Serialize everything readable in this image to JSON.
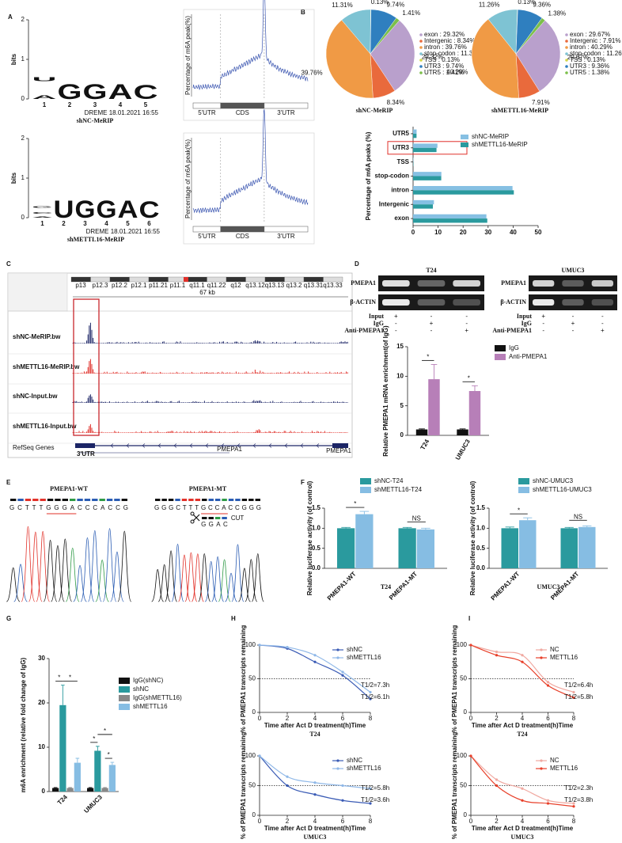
{
  "panel_letters": [
    "A",
    "B",
    "C",
    "D",
    "E",
    "F",
    "G",
    "H",
    "I"
  ],
  "letter_colors": {
    "A": "#2f9a46",
    "C": "#2a5cb3",
    "G": "#f6a623",
    "U": "#e2322a"
  },
  "motifs": [
    {
      "axis_label": "bits",
      "ylim": [
        0,
        2
      ],
      "yticks": [
        0,
        1,
        2
      ],
      "xticks": [
        1,
        2,
        3,
        4,
        5
      ],
      "columns": [
        [
          {
            "letter": "A",
            "bits": 0.45
          },
          {
            "letter": "U",
            "bits": 0.55
          }
        ],
        [
          {
            "letter": "G",
            "bits": 2
          }
        ],
        [
          {
            "letter": "G",
            "bits": 2
          }
        ],
        [
          {
            "letter": "A",
            "bits": 2
          }
        ],
        [
          {
            "letter": "C",
            "bits": 1.9
          }
        ]
      ],
      "footer": "DREME 18.01.2021 16:55",
      "name": "shNC-MeRIP"
    },
    {
      "axis_label": "bits",
      "ylim": [
        0,
        2
      ],
      "yticks": [
        0,
        1,
        2
      ],
      "xticks": [
        1,
        2,
        3,
        4,
        5,
        6
      ],
      "columns": [
        [
          {
            "letter": "A",
            "bits": 0.1
          },
          {
            "letter": "C",
            "bits": 0.15
          },
          {
            "letter": "G",
            "bits": 0.15
          }
        ],
        [
          {
            "letter": "U",
            "bits": 2
          }
        ],
        [
          {
            "letter": "G",
            "bits": 2
          }
        ],
        [
          {
            "letter": "G",
            "bits": 2
          }
        ],
        [
          {
            "letter": "A",
            "bits": 2
          }
        ],
        [
          {
            "letter": "C",
            "bits": 1.9
          }
        ]
      ],
      "footer": "DREME 18.01.2021 16:55",
      "name": "shMETTL16-MeRIP"
    }
  ],
  "metagenes": [
    {
      "y_label": "Percentage of m6A peak(%)",
      "regions": [
        "5'UTR",
        "CDS",
        "3'UTR"
      ]
    },
    {
      "y_label": "Percentage of m6A peak(%)",
      "regions": [
        "5'UTR",
        "CDS",
        "3'UTR"
      ]
    }
  ],
  "genome_browser": {
    "scale": "67 kb",
    "bands": [
      "p13",
      "p12.3",
      "p12.2",
      "p12.1",
      "p11.21",
      "p11.1",
      "q11.1",
      "q11.22",
      "q12",
      "q13.12",
      "q13.13",
      "q13.2",
      "q13.31",
      "q13.33"
    ],
    "tracks": [
      {
        "name": "shNC-MeRIP.bw",
        "color": "#1c2566"
      },
      {
        "name": "shMETTL16-MeRIP.bw",
        "color": "#e0302a"
      },
      {
        "name": "shNC-Input.bw",
        "color": "#1c2566"
      },
      {
        "name": "shMETTL16-Input.bw",
        "color": "#e0302a"
      }
    ],
    "gene_track": "RefSeq Genes",
    "region": "3'UTR",
    "gene_labels": [
      "PMEPA1",
      "PMEPA1"
    ]
  },
  "gels": [
    {
      "cell_line": "T24",
      "bands": [
        "PMEPA1",
        "β-ACTIN"
      ],
      "conditions": [
        {
          "name": "Input",
          "signs": [
            "+",
            "-",
            "-"
          ]
        },
        {
          "name": "IgG",
          "signs": [
            "-",
            "+",
            "-"
          ]
        },
        {
          "name": "Anti-PMEPA1",
          "signs": [
            "-",
            "-",
            "+"
          ]
        }
      ]
    },
    {
      "cell_line": "UMUC3",
      "bands": [
        "PMEPA1",
        "β-ACTIN"
      ],
      "conditions": [
        {
          "name": "Input",
          "signs": [
            "+",
            "-",
            "-"
          ]
        },
        {
          "name": "IgG",
          "signs": [
            "-",
            "+",
            "-"
          ]
        },
        {
          "name": "Anti-PMEPA1",
          "signs": [
            "-",
            "-",
            "+"
          ]
        }
      ]
    }
  ],
  "sequencing": [
    {
      "title": "PMEPA1-WT",
      "sequence": "GCTTTGGGACCCACCG"
    },
    {
      "title": "PMEPA1-MT",
      "sequence": "GGGCTTTGCCACCGGG",
      "deleted": "GGAC",
      "cut_label": "CUT"
    }
  ],
  "chart_data": [
    {
      "type": "pie",
      "title": "shNC-MeRIP",
      "categories": [
        "exon",
        "Intergenic",
        "intron",
        "stop-codon",
        "TSS",
        "UTR3",
        "UTR5"
      ],
      "values": [
        29.32,
        8.34,
        39.76,
        11.31,
        0.13,
        9.74,
        1.41
      ],
      "value_labels": [
        "29.32%",
        "8.34%",
        "39.76%",
        "11.31%",
        "0.13%",
        "9.74%",
        "1.41%"
      ],
      "legend_labels": [
        "exon : 29.32%",
        "Intergenic : 8.34%",
        "intron : 39.76%",
        "stop-codon : 11.31%",
        "TSS : 0.13%",
        "UTR3 : 9.74%",
        "UTR5 : 1.41%"
      ],
      "colors": [
        "#b9a0cc",
        "#e96a3c",
        "#f09a45",
        "#7ec3d3",
        "#d4d64a",
        "#2f7fbf",
        "#7cbf4a"
      ]
    },
    {
      "type": "pie",
      "title": "shMETTL16-MeRIP",
      "categories": [
        "exon",
        "Intergenic",
        "intron",
        "stop-codon",
        "TSS",
        "UTR3",
        "UTR5"
      ],
      "values": [
        29.67,
        7.91,
        40.29,
        11.26,
        0.13,
        9.36,
        1.38
      ],
      "value_labels": [
        "29.67%",
        "7.91%",
        "40.29%",
        "11.26%",
        "0.13%",
        "9.36%",
        "1.38%"
      ],
      "legend_labels": [
        "exon : 29.67%",
        "Intergenic : 7.91%",
        "intron : 40.29%",
        "stop-codon : 11.26%",
        "TSS : 0.13%",
        "UTR3 : 9.36%",
        "UTR5 : 1.38%"
      ],
      "colors": [
        "#b9a0cc",
        "#e96a3c",
        "#f09a45",
        "#7ec3d3",
        "#d4d64a",
        "#2f7fbf",
        "#7cbf4a"
      ]
    },
    {
      "type": "hbar",
      "y_label": "Percentage of m6A peaks (%)",
      "categories": [
        "UTR5",
        "UTR3",
        "TSS",
        "stop-codon",
        "intron",
        "Intergenic",
        "exon"
      ],
      "series": [
        {
          "name": "shNC-MeRIP",
          "color": "#86c0e3",
          "values": [
            1.41,
            9.74,
            0.13,
            11.31,
            39.76,
            8.34,
            29.32
          ]
        },
        {
          "name": "shMETTL16-MeRIP",
          "color": "#2a9a9e",
          "values": [
            1.38,
            9.36,
            0.13,
            11.26,
            40.29,
            7.91,
            29.67
          ]
        }
      ],
      "xlim": [
        0,
        50
      ],
      "xticks": [
        0,
        10,
        20,
        30,
        40,
        50
      ],
      "highlight": "UTR3"
    },
    {
      "type": "bar",
      "y_label": "Relative PMEPA1 mRNA enrichment(of IgG)",
      "categories": [
        "T24",
        "UMUC3"
      ],
      "series": [
        {
          "name": "IgG",
          "color": "#111111",
          "values": [
            1,
            1
          ],
          "errors": [
            0.1,
            0.1
          ]
        },
        {
          "name": "Anti-PMEPA1",
          "color": "#b77fb8",
          "values": [
            9.5,
            7.5
          ],
          "errors": [
            2.5,
            0.9
          ]
        }
      ],
      "ylim": [
        0,
        15
      ],
      "yticks": [
        0,
        5,
        10,
        15
      ],
      "annotations": [
        "*",
        "*"
      ]
    },
    {
      "type": "bar",
      "x_label": "T24",
      "y_label": "Relative luciferase activity (of control)",
      "categories": [
        "PMEPA1-WT",
        "PMEPA1-MT"
      ],
      "series": [
        {
          "name": "shNC-T24",
          "color": "#2a9a9e",
          "values": [
            1.0,
            1.0
          ],
          "errors": [
            0.02,
            0.02
          ]
        },
        {
          "name": "shMETTL16-T24",
          "color": "#86bde3",
          "values": [
            1.35,
            0.97
          ],
          "errors": [
            0.07,
            0.03
          ]
        }
      ],
      "ylim": [
        0,
        1.5
      ],
      "yticks": [
        {
          "value": 0,
          "label": "0.0"
        },
        {
          "value": 0.5,
          "label": "0.5"
        },
        {
          "value": 1,
          "label": "1.0"
        },
        {
          "value": 1.5,
          "label": "1.5"
        }
      ],
      "annotations": [
        "*",
        "NS"
      ]
    },
    {
      "type": "bar",
      "x_label": "UMUC3",
      "y_label": "Relative luciferase activity (of control)",
      "categories": [
        "PMEPA1-WT",
        "PMEPA1-MT"
      ],
      "series": [
        {
          "name": "shNC-UMUC3",
          "color": "#2a9a9e",
          "values": [
            1.0,
            1.0
          ],
          "errors": [
            0.03,
            0.02
          ]
        },
        {
          "name": "shMETTL16-UMUC3",
          "color": "#86bde3",
          "values": [
            1.2,
            1.03
          ],
          "errors": [
            0.06,
            0.03
          ]
        }
      ],
      "ylim": [
        0,
        1.5
      ],
      "yticks": [
        {
          "value": 0,
          "label": "0.0"
        },
        {
          "value": 0.5,
          "label": "0.5"
        },
        {
          "value": 1,
          "label": "1.0"
        },
        {
          "value": 1.5,
          "label": "1.5"
        }
      ],
      "annotations": [
        "*",
        "NS"
      ]
    },
    {
      "type": "bar",
      "y_label": "m6A enrichment (relative fold change of IgG)",
      "categories": [
        "T24",
        "UMUC3"
      ],
      "series": [
        {
          "name": "IgG(shNC)",
          "color": "#111111",
          "values": [
            0.8,
            0.8
          ],
          "errors": [
            0.1,
            0.1
          ]
        },
        {
          "name": "shNC",
          "color": "#2a9a9e",
          "values": [
            19.5,
            9.2
          ],
          "errors": [
            4.5,
            1.0
          ]
        },
        {
          "name": "IgG(shMETTL16)",
          "color": "#888888",
          "values": [
            0.8,
            0.8
          ],
          "errors": [
            0.1,
            0.1
          ]
        },
        {
          "name": "shMETTL16",
          "color": "#86bde3",
          "values": [
            6.5,
            6.0
          ],
          "errors": [
            1.0,
            0.6
          ]
        }
      ],
      "ylim": [
        0,
        30
      ],
      "yticks": [
        0,
        10,
        20,
        30
      ],
      "annotations": [
        "*",
        "*",
        "*",
        "*",
        "*"
      ]
    },
    {
      "type": "line",
      "title": "T24",
      "x_label": "Time after Act D treatment(h)Time",
      "y_label": "% of PMEPA1 transcripts remaining",
      "x": [
        0,
        2,
        4,
        6,
        8
      ],
      "xlim": [
        0,
        8
      ],
      "xticks": [
        0,
        2,
        4,
        6,
        8
      ],
      "ylim": [
        0,
        100
      ],
      "yticks": [
        0,
        50,
        100
      ],
      "reference_line": 50,
      "series": [
        {
          "name": "shNC",
          "color": "#3a5bb5",
          "values": [
            100,
            95,
            75,
            55,
            20
          ]
        },
        {
          "name": "shMETTL16",
          "color": "#8fb8e8",
          "values": [
            100,
            97,
            85,
            60,
            30
          ]
        }
      ],
      "annotations": [
        "T1/2=7.3h",
        "T1/2=6.1h"
      ]
    },
    {
      "type": "line",
      "title": "UMUC3",
      "x_label": "Time after Act D treatment(h)Time",
      "y_label": "% of PMEPA1 transcripts remaining",
      "x": [
        0,
        2,
        4,
        6,
        8
      ],
      "xlim": [
        0,
        8
      ],
      "xticks": [
        0,
        2,
        4,
        6,
        8
      ],
      "ylim": [
        0,
        100
      ],
      "yticks": [
        0,
        50,
        100
      ],
      "reference_line": 50,
      "series": [
        {
          "name": "shNC",
          "color": "#3a5bb5",
          "values": [
            100,
            50,
            35,
            25,
            20
          ]
        },
        {
          "name": "shMETTL16",
          "color": "#8fb8e8",
          "values": [
            100,
            65,
            55,
            50,
            45
          ]
        }
      ],
      "annotations": [
        "T1/2=5.8h",
        "T1/2=3.6h"
      ]
    },
    {
      "type": "line",
      "title": "T24",
      "x_label": "Time after Act D treatment(h)Time",
      "y_label": "% of PMEPA1 transcripts remaining",
      "x": [
        0,
        2,
        4,
        6,
        8
      ],
      "xlim": [
        0,
        8
      ],
      "xticks": [
        0,
        2,
        4,
        6,
        8
      ],
      "ylim": [
        0,
        100
      ],
      "yticks": [
        0,
        50,
        100
      ],
      "reference_line": 50,
      "series": [
        {
          "name": "NC",
          "color": "#f0a8a0",
          "values": [
            100,
            90,
            85,
            45,
            30
          ]
        },
        {
          "name": "METTL16",
          "color": "#e8402a",
          "values": [
            100,
            85,
            75,
            40,
            22
          ]
        }
      ],
      "annotations": [
        "T1/2=6.4h",
        "T1/2=5.8h"
      ]
    },
    {
      "type": "line",
      "title": "UMUC3",
      "x_label": "Time after Act D treatment(h)Time",
      "y_label": "% of PMEPA1 transcripts remaining",
      "x": [
        0,
        2,
        4,
        6,
        8
      ],
      "xlim": [
        0,
        8
      ],
      "xticks": [
        0,
        2,
        4,
        6,
        8
      ],
      "ylim": [
        0,
        100
      ],
      "yticks": [
        0,
        50,
        100
      ],
      "reference_line": 50,
      "series": [
        {
          "name": "NC",
          "color": "#f0a8a0",
          "values": [
            100,
            60,
            45,
            25,
            20
          ]
        },
        {
          "name": "METTL16",
          "color": "#e8402a",
          "values": [
            100,
            50,
            25,
            20,
            15
          ]
        }
      ],
      "annotations": [
        "T1/2=2.3h",
        "T1/2=3.8h"
      ]
    }
  ]
}
